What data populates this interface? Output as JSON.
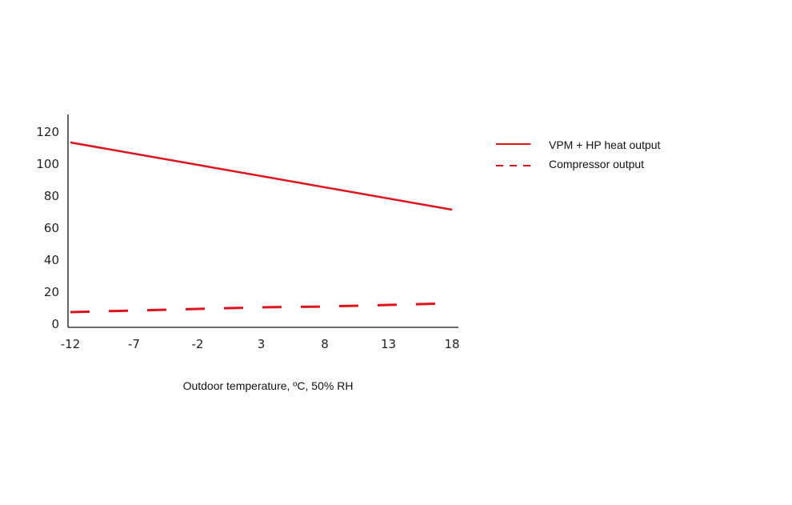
{
  "chart_data": {
    "type": "line",
    "title": "",
    "xlabel": "Outdoor temperature, ºC, 50% RH",
    "ylabel": "",
    "x_ticks": [
      "-12",
      "-7",
      "-2",
      "3",
      "8",
      "13",
      "18"
    ],
    "y_ticks": [
      "0",
      "20",
      "40",
      "60",
      "80",
      "100",
      "120"
    ],
    "xlim": [
      -12,
      18
    ],
    "ylim": [
      0,
      120
    ],
    "grid": false,
    "legend_position": "right",
    "series": [
      {
        "name": "VPM + HP heat output",
        "style": "solid",
        "color": "#e0121c",
        "x": [
          -12,
          18
        ],
        "values": [
          113,
          71
        ]
      },
      {
        "name": "Compressor output",
        "style": "dashed",
        "color": "#e0121c",
        "x": [
          -12,
          -7,
          -2,
          3,
          8,
          13,
          18
        ],
        "values": [
          7,
          8,
          9,
          10,
          10.5,
          11.5,
          12.5
        ]
      }
    ]
  }
}
